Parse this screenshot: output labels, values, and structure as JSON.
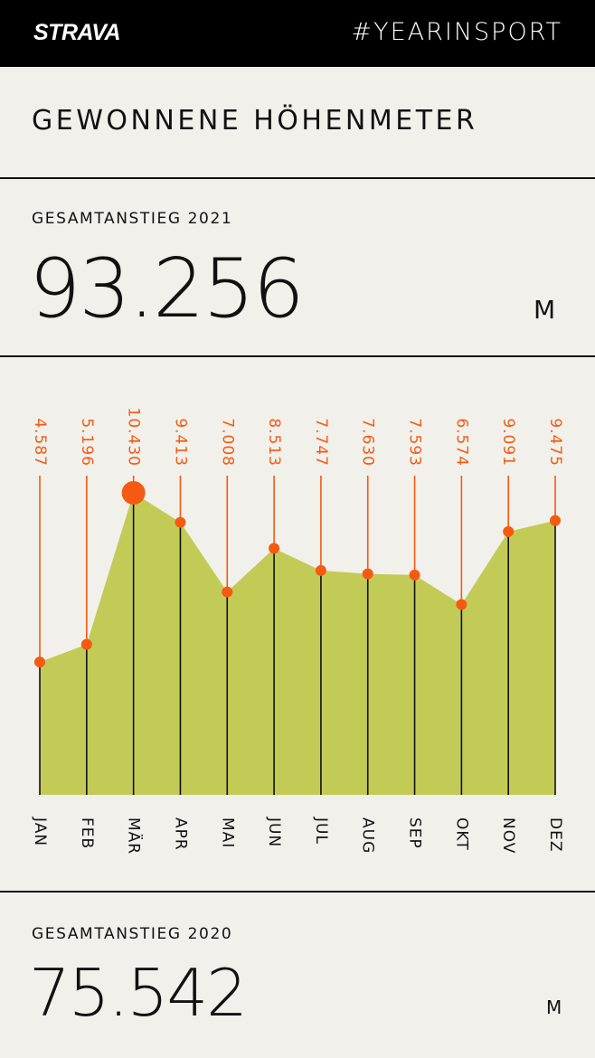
{
  "header": {
    "logo": "STRAVA",
    "hashtag": "#YEARINSPORT"
  },
  "title": "GEWONNENE HÖHENMETER",
  "stat_2021": {
    "label": "GESAMTANSTIEG 2021",
    "value": "93.256",
    "unit": "M"
  },
  "stat_2020": {
    "label": "GESAMTANSTIEG 2020",
    "value": "75.542",
    "unit": "M"
  },
  "colors": {
    "accent": "#f45a12",
    "area": "#c2cb56",
    "background": "#f2f0eb",
    "ink": "#111111"
  },
  "chart_data": {
    "type": "area",
    "categories": [
      "JAN",
      "FEB",
      "MÄR",
      "APR",
      "MAI",
      "JUN",
      "JUL",
      "AUG",
      "SEP",
      "OKT",
      "NOV",
      "DEZ"
    ],
    "values": [
      4587,
      5196,
      10430,
      9413,
      7008,
      8513,
      7747,
      7630,
      7593,
      6574,
      9091,
      9475
    ],
    "value_labels": [
      "4.587",
      "5.196",
      "10.430",
      "9.413",
      "7.008",
      "8.513",
      "7.747",
      "7.630",
      "7.593",
      "6.574",
      "9.091",
      "9.475"
    ],
    "highlight_index": 2,
    "ylim": [
      0,
      10430
    ],
    "grid": false,
    "legend": "none"
  }
}
